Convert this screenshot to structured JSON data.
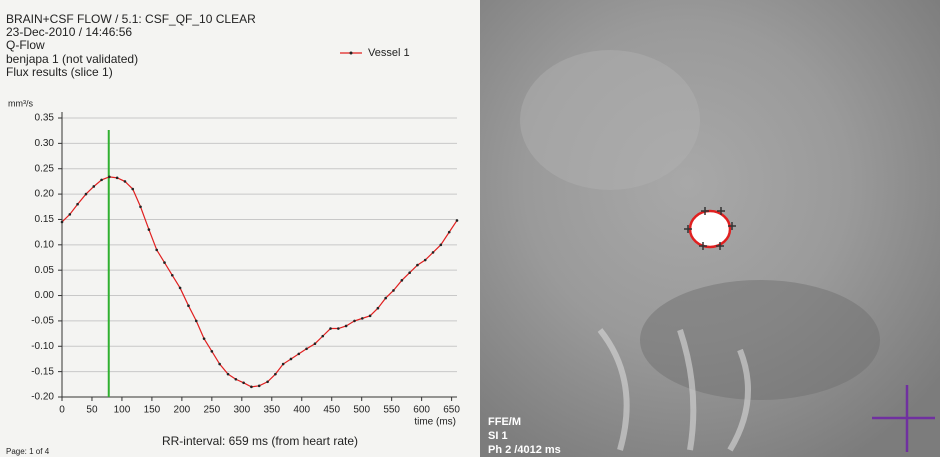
{
  "header": {
    "lines": [
      "BRAIN+CSF FLOW / 5.1: CSF_QF_10 CLEAR",
      "23-Dec-2010 / 14:46:56",
      "Q-Flow",
      "benjapa 1 (not validated)",
      "Flux results (slice  1)"
    ]
  },
  "chart_data": {
    "type": "line",
    "y_label": "mm³/s",
    "x_label": "time (ms)",
    "legend_position": "top-right",
    "x": [
      0,
      13,
      26,
      40,
      53,
      66,
      79,
      92,
      105,
      118,
      131,
      145,
      158,
      171,
      184,
      197,
      211,
      224,
      237,
      250,
      263,
      277,
      290,
      303,
      316,
      329,
      343,
      356,
      369,
      382,
      395,
      408,
      422,
      435,
      448,
      461,
      474,
      488,
      501,
      514,
      527,
      540,
      553,
      567,
      580,
      593,
      606,
      619,
      632,
      646,
      659
    ],
    "series": [
      {
        "name": "Vessel 1",
        "color": "#e02020",
        "values": [
          0.145,
          0.16,
          0.18,
          0.2,
          0.215,
          0.228,
          0.234,
          0.232,
          0.225,
          0.21,
          0.175,
          0.13,
          0.09,
          0.065,
          0.04,
          0.015,
          -0.02,
          -0.05,
          -0.085,
          -0.11,
          -0.135,
          -0.155,
          -0.165,
          -0.172,
          -0.18,
          -0.178,
          -0.17,
          -0.155,
          -0.135,
          -0.125,
          -0.115,
          -0.105,
          -0.095,
          -0.08,
          -0.065,
          -0.065,
          -0.06,
          -0.05,
          -0.045,
          -0.04,
          -0.025,
          -0.005,
          0.01,
          0.03,
          0.045,
          0.06,
          0.07,
          0.085,
          0.1,
          0.125,
          0.148
        ]
      }
    ],
    "marker_x": 78,
    "marker_color": "#30b030",
    "xlim": [
      0,
      659
    ],
    "xticks": [
      0,
      50,
      100,
      150,
      200,
      250,
      300,
      350,
      400,
      450,
      500,
      550,
      600,
      650
    ],
    "ylim": [
      -0.2,
      0.35
    ],
    "yticks": [
      {
        "value": -0.2,
        "label": "-0.20"
      },
      -0.15,
      {
        "value": -0.1,
        "label": "-0.10"
      },
      -0.05,
      {
        "value": 0,
        "label": "0.00"
      },
      0.05,
      {
        "value": 0.1,
        "label": "0.10"
      },
      0.15,
      {
        "value": 0.2,
        "label": "0.20"
      },
      0.25,
      {
        "value": 0.3,
        "label": "0.30"
      },
      0.35
    ],
    "grid": true
  },
  "footer": {
    "rr": "RR-interval: 659 ms (from heart rate)",
    "page": "Page: 1 of 4"
  },
  "image_overlay": {
    "lines": [
      "FFE/M",
      "SI 1",
      "Ph 2 /4012 ms"
    ]
  }
}
